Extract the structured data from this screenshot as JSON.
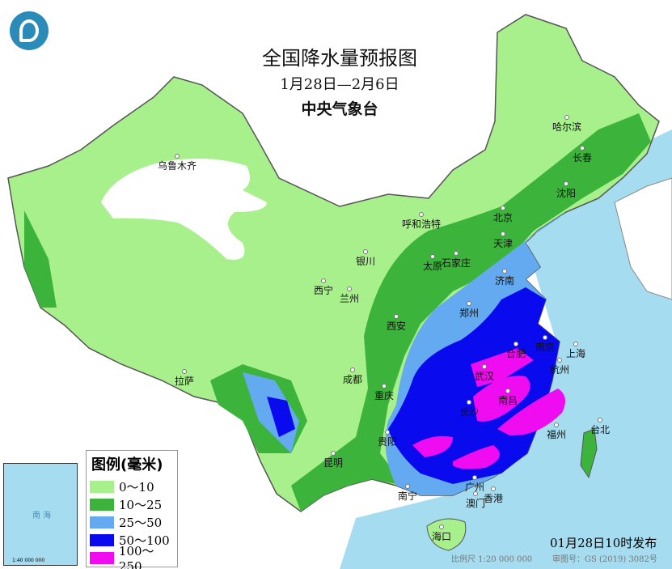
{
  "title": "全国降水量预报图",
  "date_range": "1月28日—2月6日",
  "issuer": "中央气象台",
  "legend": {
    "title": "图例(毫米)",
    "items": [
      {
        "label": "0～10",
        "color": "#a8f08c"
      },
      {
        "label": "10～25",
        "color": "#3cb43c"
      },
      {
        "label": "25～50",
        "color": "#64aaf0"
      },
      {
        "label": "50～100",
        "color": "#0a0aee"
      },
      {
        "label": "100～250",
        "color": "#f00cf0"
      }
    ]
  },
  "cities": [
    "哈尔滨",
    "长春",
    "沈阳",
    "乌鲁木齐",
    "呼和浩特",
    "北京",
    "天津",
    "银川",
    "太原",
    "石家庄",
    "西宁",
    "兰州",
    "济南",
    "郑州",
    "西安",
    "南京",
    "合肥",
    "上海",
    "武汉",
    "杭州",
    "成都",
    "拉萨",
    "重庆",
    "南昌",
    "长沙",
    "福州",
    "台北",
    "贵阳",
    "昆明",
    "南宁",
    "广州",
    "香港",
    "澳门",
    "海口"
  ],
  "inset": {
    "sea_label": "南 海",
    "scale": "1:40 000 000"
  },
  "footer": {
    "published": "01月28日10时发布",
    "scale": "比例尺 1:20 000 000",
    "approval": "审图号：GS (2019) 3082号"
  }
}
